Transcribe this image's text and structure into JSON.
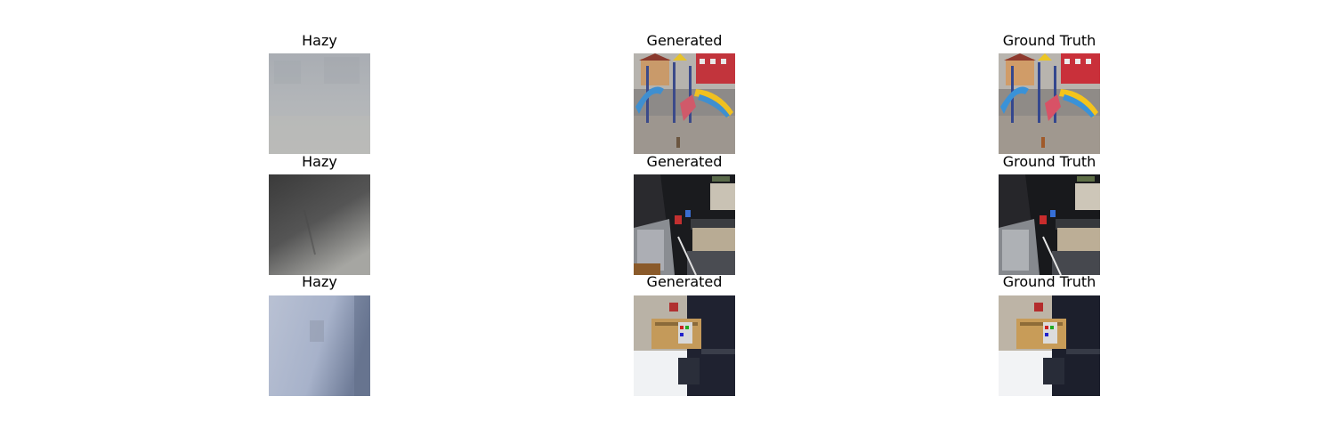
{
  "grid": {
    "rows": [
      {
        "cells": [
          {
            "title": "Hazy",
            "scene": "playground-hazy"
          },
          {
            "title": "Generated",
            "scene": "playground-clear"
          },
          {
            "title": "Ground Truth",
            "scene": "playground-clear"
          }
        ]
      },
      {
        "cells": [
          {
            "title": "Hazy",
            "scene": "kitchen-hazy"
          },
          {
            "title": "Generated",
            "scene": "kitchen-clear"
          },
          {
            "title": "Ground Truth",
            "scene": "kitchen-clear"
          }
        ]
      },
      {
        "cells": [
          {
            "title": "Hazy",
            "scene": "room-hazy"
          },
          {
            "title": "Generated",
            "scene": "room-clear"
          },
          {
            "title": "Ground Truth",
            "scene": "room-clear"
          }
        ]
      }
    ]
  }
}
